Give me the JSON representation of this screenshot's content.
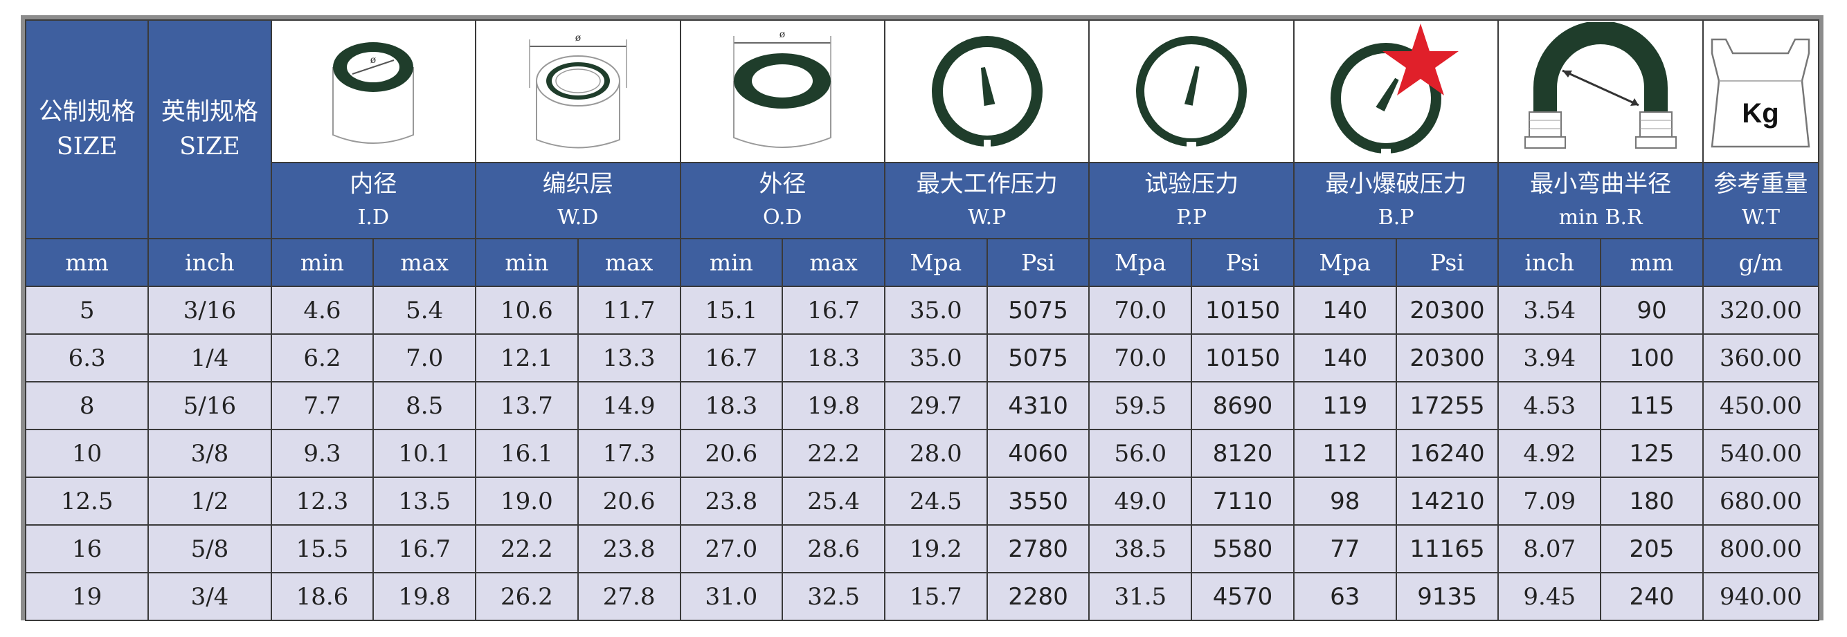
{
  "headers": {
    "metric_size": {
      "cn": "公制规格",
      "en": "SIZE"
    },
    "imperial_size": {
      "cn": "英制规格",
      "en": "SIZE"
    },
    "groups": [
      {
        "cn": "内径",
        "en": "I.D",
        "icon": "inner-diameter-icon"
      },
      {
        "cn": "编织层",
        "en": "W.D",
        "icon": "braid-layer-icon"
      },
      {
        "cn": "外径",
        "en": "O.D",
        "icon": "outer-diameter-icon"
      },
      {
        "cn": "最大工作压力",
        "en": "W.P",
        "icon": "working-pressure-gauge-icon"
      },
      {
        "cn": "试验压力",
        "en": "P.P",
        "icon": "proof-pressure-gauge-icon"
      },
      {
        "cn": "最小爆破压力",
        "en": "B.P",
        "icon": "burst-pressure-gauge-icon"
      },
      {
        "cn": "最小弯曲半径",
        "en": "min B.R",
        "icon": "bend-radius-icon"
      },
      {
        "cn": "参考重量",
        "en": "W.T",
        "icon": "weight-icon",
        "icon_text": "Kg"
      }
    ]
  },
  "units": [
    "mm",
    "inch",
    "min",
    "max",
    "min",
    "max",
    "min",
    "max",
    "Mpa",
    "Psi",
    "Mpa",
    "Psi",
    "Mpa",
    "Psi",
    "inch",
    "mm",
    "g/m"
  ],
  "rows": [
    [
      "5",
      "3/16",
      "4.6",
      "5.4",
      "10.6",
      "11.7",
      "15.1",
      "16.7",
      "35.0",
      "5075",
      "70.0",
      "10150",
      "140",
      "20300",
      "3.54",
      "90",
      "320.00"
    ],
    [
      "6.3",
      "1/4",
      "6.2",
      "7.0",
      "12.1",
      "13.3",
      "16.7",
      "18.3",
      "35.0",
      "5075",
      "70.0",
      "10150",
      "140",
      "20300",
      "3.94",
      "100",
      "360.00"
    ],
    [
      "8",
      "5/16",
      "7.7",
      "8.5",
      "13.7",
      "14.9",
      "18.3",
      "19.8",
      "29.7",
      "4310",
      "59.5",
      "8690",
      "119",
      "17255",
      "4.53",
      "115",
      "450.00"
    ],
    [
      "10",
      "3/8",
      "9.3",
      "10.1",
      "16.1",
      "17.3",
      "20.6",
      "22.2",
      "28.0",
      "4060",
      "56.0",
      "8120",
      "112",
      "16240",
      "4.92",
      "125",
      "540.00"
    ],
    [
      "12.5",
      "1/2",
      "12.3",
      "13.5",
      "19.0",
      "20.6",
      "23.8",
      "25.4",
      "24.5",
      "3550",
      "49.0",
      "7110",
      "98",
      "14210",
      "7.09",
      "180",
      "680.00"
    ],
    [
      "16",
      "5/8",
      "15.5",
      "16.7",
      "22.2",
      "23.8",
      "27.0",
      "28.6",
      "19.2",
      "2780",
      "38.5",
      "5580",
      "77",
      "11165",
      "8.07",
      "205",
      "800.00"
    ],
    [
      "19",
      "3/4",
      "18.6",
      "19.8",
      "26.2",
      "27.8",
      "31.0",
      "32.5",
      "15.7",
      "2280",
      "31.5",
      "4570",
      "63",
      "9135",
      "9.45",
      "240",
      "940.00"
    ]
  ],
  "colors": {
    "header_blue": "#3e5f9f",
    "row_bg": "#dcdcec",
    "icon_green": "#1f3d2b",
    "star_red": "#e0202a",
    "border": "#3a3a3a"
  }
}
